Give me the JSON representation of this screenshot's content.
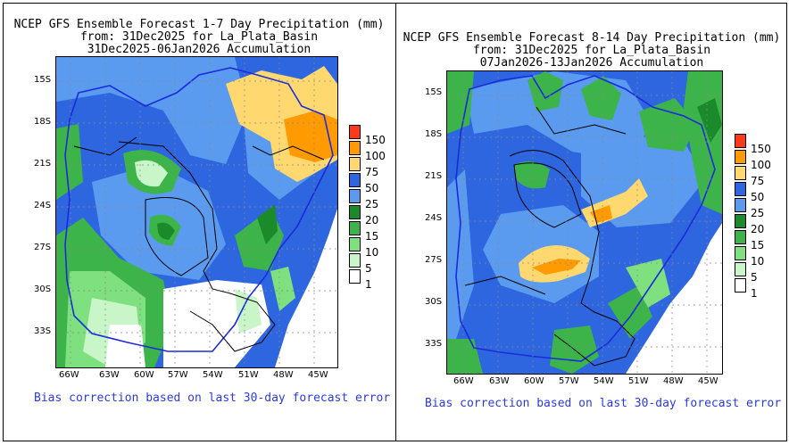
{
  "panels": [
    {
      "title_line1": "NCEP GFS Ensemble Forecast 1-7 Day Precipitation (mm)",
      "title_line2": "from: 31Dec2025   for La_Plata_Basin",
      "title_line3": "31Dec2025-06Jan2026 Accumulation",
      "lat_ticks": [
        "15S",
        "18S",
        "21S",
        "24S",
        "27S",
        "30S",
        "33S"
      ],
      "lon_ticks": [
        "66W",
        "63W",
        "60W",
        "57W",
        "54W",
        "51W",
        "48W",
        "45W"
      ],
      "bias_note": "Bias correction based on last 30-day forecast error"
    },
    {
      "title_line1": "NCEP GFS Ensemble Forecast 8-14 Day Precipitation (mm)",
      "title_line2": "from: 31Dec2025   for La_Plata_Basin",
      "title_line3": "07Jan2026-13Jan2026 Accumulation",
      "lat_ticks": [
        "15S",
        "18S",
        "21S",
        "24S",
        "27S",
        "30S",
        "33S"
      ],
      "lon_ticks": [
        "66W",
        "63W",
        "60W",
        "57W",
        "54W",
        "51W",
        "48W",
        "45W"
      ],
      "bias_note": "Bias correction based on last 30-day forecast error"
    }
  ],
  "legend": {
    "labels": [
      "150",
      "100",
      "75",
      "50",
      "25",
      "20",
      "15",
      "10",
      "5",
      "1"
    ],
    "colors": [
      "#ff3a1a",
      "#ff9a00",
      "#ffd870",
      "#2e66e0",
      "#5a9bf0",
      "#1b8a2a",
      "#3cb44a",
      "#7fe07f",
      "#c8f6c8",
      "#ffffff"
    ]
  },
  "colors": {
    "ocean_bg": "#ffffff",
    "blue_dark": "#2e66e0",
    "blue_light": "#5a9bf0",
    "green_dark": "#1b8a2a",
    "green_mid": "#3cb44a",
    "green_light": "#7fe07f",
    "green_pale": "#c8f6c8",
    "yellow": "#ffd870",
    "orange": "#ff9a00",
    "red": "#ff3a1a",
    "basin_line": "#1a2bdc",
    "border_line": "#000000",
    "bias_text": "#2b3bdf"
  }
}
